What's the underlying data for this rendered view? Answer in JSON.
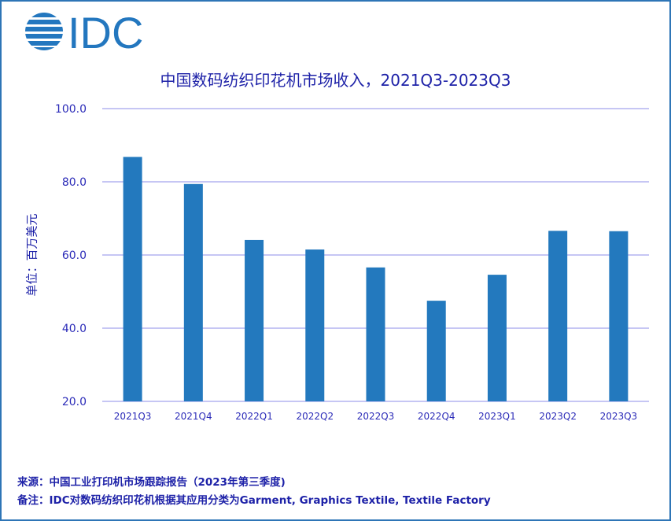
{
  "logo": {
    "text": "IDC",
    "color": "#2377BF"
  },
  "chart_data": {
    "type": "bar",
    "title": "中国数码纺织印花机市场收入，2021Q3-2023Q3",
    "ylabel": "单位：百万美元",
    "xlabel": "",
    "categories": [
      "2021Q3",
      "2021Q4",
      "2022Q1",
      "2022Q2",
      "2022Q3",
      "2022Q4",
      "2023Q1",
      "2023Q2",
      "2023Q3"
    ],
    "values": [
      86.8,
      79.4,
      64.1,
      61.5,
      56.6,
      47.5,
      54.6,
      66.6,
      66.5
    ],
    "ylim": [
      20,
      100
    ],
    "yticks": [
      "20.0",
      "40.0",
      "60.0",
      "80.0",
      "100.0"
    ],
    "grid": true,
    "bar_color": "#2379BE",
    "gridline_color": "#B4B4F0"
  },
  "footer": {
    "source": "来源：中国工业打印机市场跟踪报告（2023年第三季度)",
    "note": "备注：IDC对数码纺织印花机根据其应用分类为Garment, Graphics Textile, Textile Factory"
  }
}
